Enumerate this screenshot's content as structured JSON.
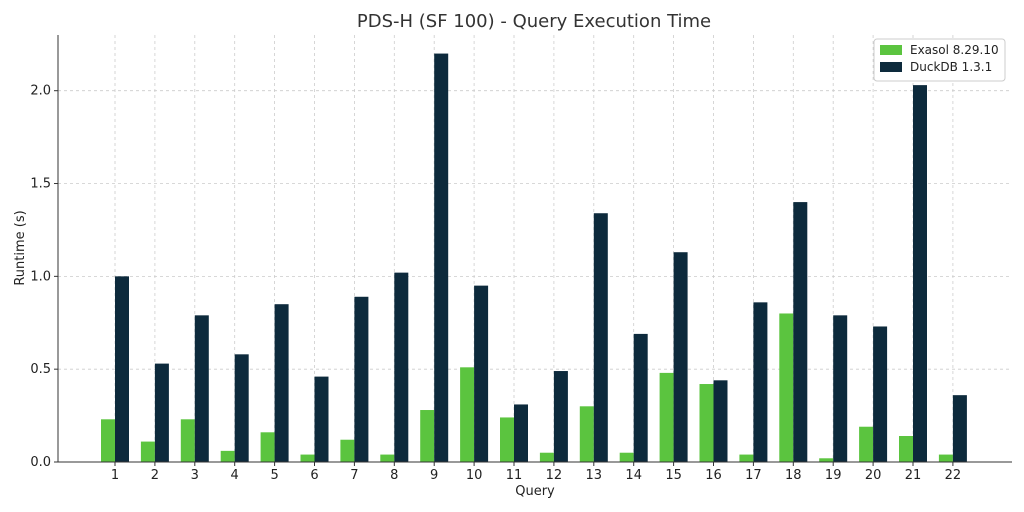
{
  "chart_data": {
    "type": "bar",
    "title": "PDS-H (SF 100) - Query Execution Time",
    "xlabel": "Query",
    "ylabel": "Runtime (s)",
    "ylim": [
      0,
      2.3
    ],
    "yticks": [
      "0.0",
      "0.5",
      "1.0",
      "1.5",
      "2.0"
    ],
    "grid": true,
    "legend_position": "top-right",
    "categories": [
      "1",
      "2",
      "3",
      "4",
      "5",
      "6",
      "7",
      "8",
      "9",
      "10",
      "11",
      "12",
      "13",
      "14",
      "15",
      "16",
      "17",
      "18",
      "19",
      "20",
      "21",
      "22"
    ],
    "series": [
      {
        "name": "Exasol 8.29.10",
        "color": "#5bc43f",
        "values": [
          0.23,
          0.11,
          0.23,
          0.06,
          0.16,
          0.04,
          0.12,
          0.04,
          0.28,
          0.51,
          0.24,
          0.05,
          0.3,
          0.05,
          0.48,
          0.42,
          0.04,
          0.8,
          0.02,
          0.19,
          0.14,
          0.04
        ]
      },
      {
        "name": "DuckDB 1.3.1",
        "color": "#0d2a3c",
        "values": [
          1.0,
          0.53,
          0.79,
          0.58,
          0.85,
          0.46,
          0.89,
          1.02,
          2.2,
          0.95,
          0.31,
          0.49,
          1.34,
          0.69,
          1.13,
          0.44,
          0.86,
          1.4,
          0.79,
          0.73,
          2.03,
          0.36
        ]
      }
    ]
  }
}
